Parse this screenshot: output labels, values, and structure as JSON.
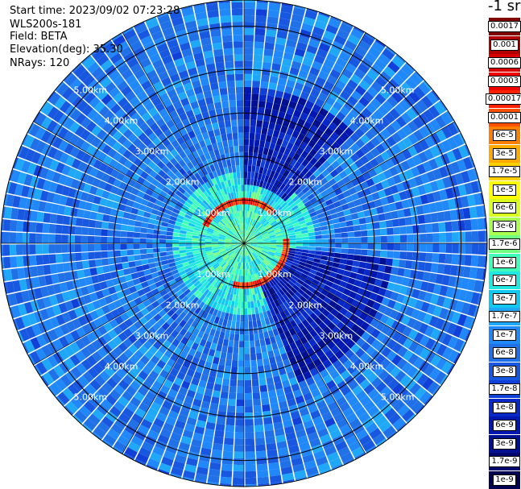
{
  "header": {
    "start_time": "Start time: 2023/09/02 07:23:28",
    "instrument": "WLS200s-181",
    "field": "Field: BETA",
    "elevation": "Elevation(deg): 35.30",
    "nrays": "NRays: 120"
  },
  "colorbar": {
    "title": "-1 sr",
    "labels": [
      "0.0017",
      "0.001",
      "0.0006",
      "0.0003",
      "0.00017",
      "0.0001",
      "6e-5",
      "3e-5",
      "1.7e-5",
      "1e-5",
      "6e-6",
      "3e-6",
      "1.7e-6",
      "1e-6",
      "6e-7",
      "3e-7",
      "1.7e-7",
      "1e-7",
      "6e-8",
      "3e-8",
      "1.7e-8",
      "1e-8",
      "6e-9",
      "3e-9",
      "1.7e-9",
      "1e-9"
    ],
    "colors": [
      "#800000",
      "#b00000",
      "#d80000",
      "#f00000",
      "#ff2000",
      "#ff5000",
      "#ff8000",
      "#ffaa00",
      "#ffd000",
      "#ffff00",
      "#d8ff20",
      "#a8ff50",
      "#70ff80",
      "#40ffb8",
      "#20e8e0",
      "#10c8f0",
      "#20a8f8",
      "#2088f8",
      "#2070e8",
      "#1858e0",
      "#1040d8",
      "#0828c8",
      "#0018b0",
      "#001090",
      "#000870",
      "#000050"
    ]
  },
  "chart_data": {
    "type": "heatmap",
    "projection": "polar-ppi",
    "field": "BETA",
    "units": "sr-1",
    "elevation_deg": 35.3,
    "n_rays": 120,
    "max_range_km": 5.6,
    "range_rings_km": [
      1.0,
      2.0,
      3.0,
      4.0,
      5.0
    ],
    "ring_labels": [
      "1.00km",
      "2.00km",
      "3.00km",
      "4.00km",
      "5.00km"
    ],
    "spokes_deg": [
      0,
      30,
      60,
      90,
      120,
      150,
      180,
      210,
      240,
      270,
      300,
      330
    ],
    "background_level_log10": -7.2,
    "near_field_level_log10": -6.4,
    "features": [
      {
        "azimuth_start_deg": 295,
        "azimuth_end_deg": 45,
        "range_start_km": 0.85,
        "range_end_km": 1.05,
        "level_log10": -3.8
      },
      {
        "azimuth_start_deg": 85,
        "azimuth_end_deg": 195,
        "range_start_km": 0.85,
        "range_end_km": 1.1,
        "level_log10": -3.8
      },
      {
        "azimuth_start_deg": 0,
        "azimuth_end_deg": 45,
        "range_start_km": 1.3,
        "range_end_km": 3.6,
        "level_log10": -8.2
      },
      {
        "azimuth_start_deg": 95,
        "azimuth_end_deg": 160,
        "range_start_km": 1.1,
        "range_end_km": 3.4,
        "level_log10": -8.2
      }
    ]
  }
}
